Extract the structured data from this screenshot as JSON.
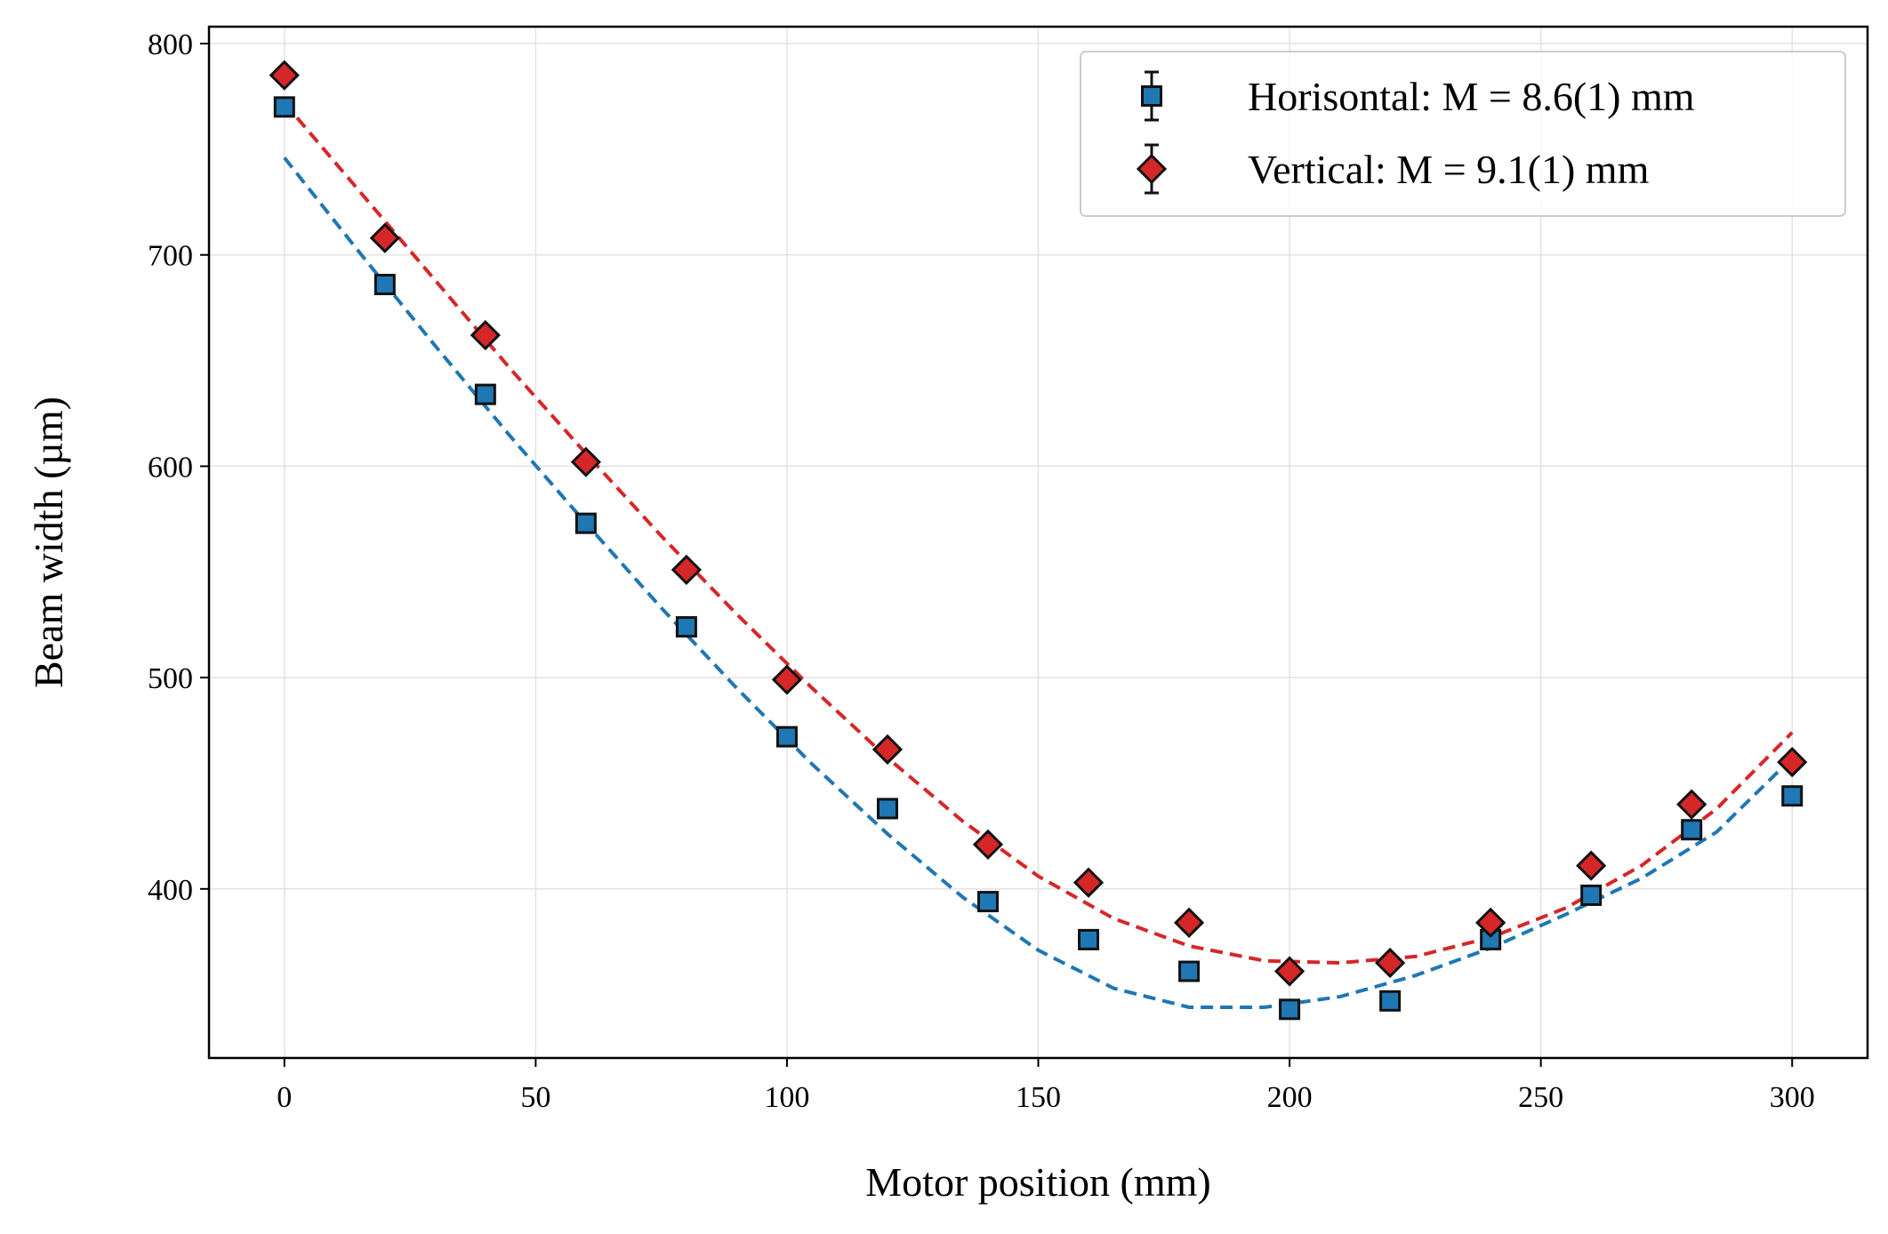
{
  "chart_data": {
    "type": "scatter",
    "xlabel": "Motor position (mm)",
    "ylabel": "Beam width (µm)",
    "xlim": [
      -15,
      315
    ],
    "ylim": [
      320,
      808
    ],
    "xticks": [
      0,
      50,
      100,
      150,
      200,
      250,
      300
    ],
    "yticks": [
      400,
      500,
      600,
      700,
      800
    ],
    "grid": true,
    "legend_position": "top-right",
    "series": [
      {
        "name": "Horisontal: M = 8.6(1) mm",
        "marker": "square",
        "color": "#1f77b4",
        "x": [
          0,
          20,
          40,
          60,
          80,
          100,
          120,
          140,
          160,
          180,
          200,
          220,
          240,
          260,
          280,
          300
        ],
        "y": [
          770,
          686,
          634,
          573,
          524,
          472,
          438,
          394,
          376,
          361,
          343,
          347,
          376,
          397,
          428,
          444
        ],
        "fit": {
          "x": [
            0,
            15,
            30,
            45,
            60,
            75,
            90,
            105,
            120,
            135,
            150,
            165,
            180,
            195,
            210,
            225,
            240,
            255,
            270,
            285,
            300
          ],
          "y": [
            746,
            701,
            657,
            614,
            573,
            533,
            495,
            459,
            426,
            396,
            371,
            353,
            344,
            344,
            349,
            359,
            372,
            388,
            405,
            427,
            462
          ]
        }
      },
      {
        "name": "Vertical: M = 9.1(1) mm",
        "marker": "diamond",
        "color": "#d62728",
        "x": [
          0,
          20,
          40,
          60,
          80,
          100,
          120,
          140,
          160,
          180,
          200,
          220,
          240,
          260,
          280,
          300
        ],
        "y": [
          785,
          708,
          662,
          602,
          551,
          499,
          466,
          421,
          403,
          384,
          361,
          365,
          384,
          411,
          440,
          460
        ],
        "fit": {
          "x": [
            0,
            15,
            30,
            45,
            60,
            75,
            90,
            105,
            120,
            135,
            150,
            165,
            180,
            195,
            210,
            225,
            240,
            255,
            270,
            285,
            300
          ],
          "y": [
            772,
            730,
            688,
            646,
            606,
            567,
            530,
            495,
            462,
            432,
            406,
            386,
            373,
            366,
            365,
            368,
            377,
            391,
            411,
            438,
            474
          ]
        }
      }
    ]
  }
}
